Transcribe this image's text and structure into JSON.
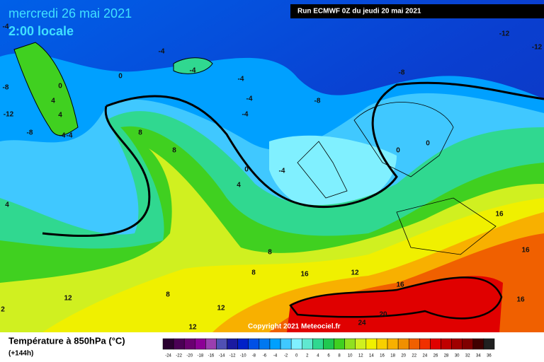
{
  "header": {
    "date": "mercredi 26 mai 2021",
    "time": "2:00 locale",
    "run": "Run ECMWF 0Z du jeudi 20 mai 2021"
  },
  "copyright": "Copyright 2021 Meteociel.fr",
  "legend": {
    "title": "Température à 850hPa (°C)",
    "lead": "(+144h)",
    "ticks": [
      -24,
      -22,
      -20,
      -18,
      -16,
      -14,
      -12,
      -10,
      -8,
      -6,
      -4,
      -2,
      0,
      2,
      4,
      6,
      8,
      10,
      12,
      14,
      16,
      18,
      20,
      22,
      24,
      26,
      28,
      30,
      32,
      34,
      36
    ],
    "colors": [
      "#2a0030",
      "#4b0055",
      "#6a0070",
      "#8c0096",
      "#9b3fb0",
      "#5050b4",
      "#1a1aa0",
      "#0020c8",
      "#0050e6",
      "#0078f0",
      "#00a0ff",
      "#40c8ff",
      "#80f0ff",
      "#60e8d0",
      "#30d890",
      "#20c850",
      "#40d020",
      "#90e020",
      "#d0f020",
      "#f0f000",
      "#f8d000",
      "#f8b000",
      "#f09000",
      "#f06000",
      "#f03000",
      "#e00000",
      "#c00000",
      "#a00000",
      "#800000",
      "#400000",
      "#202020"
    ]
  },
  "map": {
    "labels": [
      -4,
      -8,
      -12,
      -8,
      0,
      4,
      4,
      -4,
      -4,
      0,
      -4,
      -4,
      -4,
      -4,
      -4,
      -8,
      -8,
      -12,
      -12,
      8,
      8,
      0,
      4,
      -4,
      0,
      0,
      8,
      16,
      12,
      8,
      16,
      8,
      12,
      12,
      20,
      24,
      12,
      16,
      16,
      16,
      4,
      2
    ]
  }
}
